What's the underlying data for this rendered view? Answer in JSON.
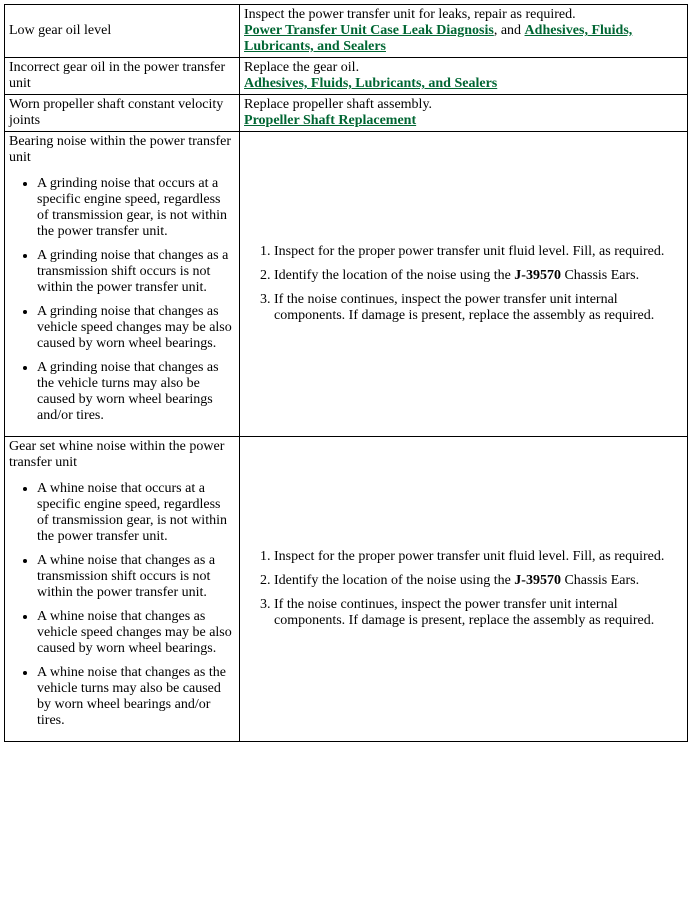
{
  "rows": {
    "r1": {
      "cause": "Low gear oil level",
      "action_text": "Inspect the power transfer unit for leaks, repair as required.",
      "link1": "Power Transfer Unit Case Leak Diagnosis",
      "sep": ", and ",
      "link2": "Adhesives, Fluids, Lubricants, and Sealers"
    },
    "r2": {
      "cause": "Incorrect gear oil in the power transfer unit",
      "action_text": "Replace the gear oil.",
      "link1": "Adhesives, Fluids, Lubricants, and Sealers"
    },
    "r3": {
      "cause": "Worn propeller shaft constant velocity joints",
      "action_text": "Replace propeller shaft assembly.",
      "link1": "Propeller Shaft Replacement"
    },
    "r4": {
      "title": "Bearing noise within the power transfer unit",
      "bullets": [
        "A grinding noise that occurs at a specific engine speed, regardless of transmission gear, is not within the power transfer unit.",
        "A grinding noise that changes as a transmission shift occurs is not within the power transfer unit.",
        "A grinding noise that changes as vehicle speed changes may be also caused by worn wheel bearings.",
        "A grinding noise that changes as the vehicle turns may also be caused by worn wheel bearings and/or tires."
      ],
      "steps": {
        "s1": "Inspect for the proper power transfer unit fluid level. Fill, as required.",
        "s2a": "Identify the location of the noise using the ",
        "s2b": "J-39570",
        "s2c": " Chassis Ears.",
        "s3": "If the noise continues, inspect the power transfer unit internal components. If damage is present, replace the assembly as required."
      }
    },
    "r5": {
      "title": "Gear set whine noise within the power transfer unit",
      "bullets": [
        "A whine noise that occurs at a specific engine speed, regardless of transmission gear, is not within the power transfer unit.",
        "A whine noise that changes as a transmission shift occurs is not within the power transfer unit.",
        "A whine noise that changes as vehicle speed changes may be also caused by worn wheel bearings.",
        "A whine noise that changes as the vehicle turns may also be caused by worn wheel bearings and/or tires."
      ],
      "steps": {
        "s1": "Inspect for the proper power transfer unit fluid level. Fill, as required.",
        "s2a": "Identify the location of the noise using the ",
        "s2b": "J-39570",
        "s2c": " Chassis Ears.",
        "s3": "If the noise continues, inspect the power transfer unit internal components. If damage is present, replace the assembly as required."
      }
    }
  },
  "colors": {
    "link": "#006633",
    "border": "#000000",
    "text": "#000000",
    "background": "#ffffff"
  },
  "typography": {
    "font_family": "Times New Roman",
    "body_size_pt": 11
  }
}
